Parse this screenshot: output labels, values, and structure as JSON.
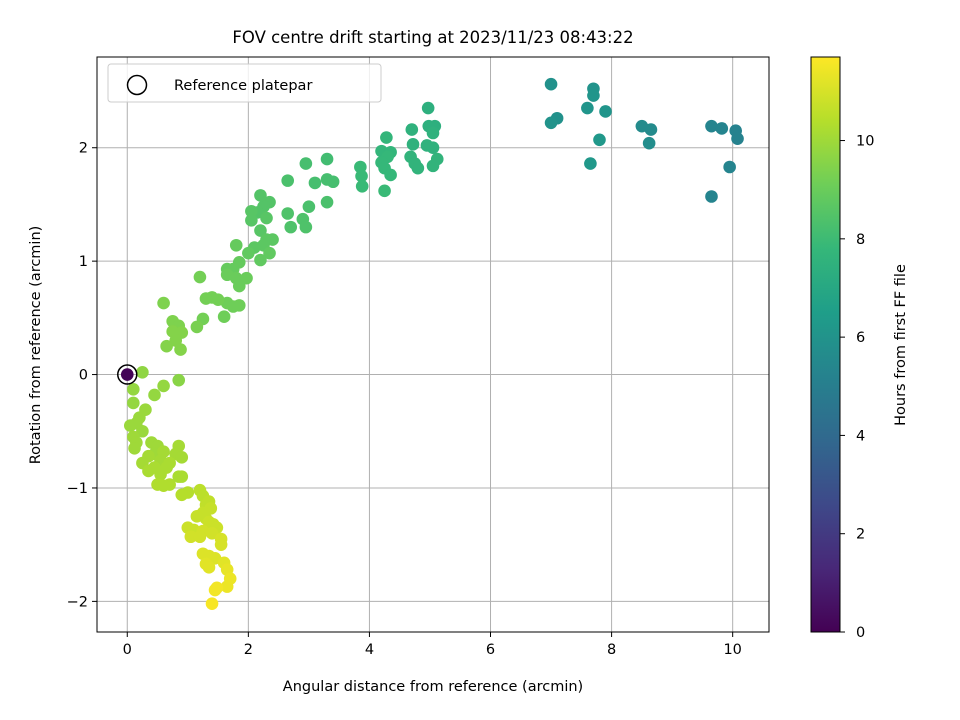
{
  "chart_data": {
    "type": "scatter",
    "title": "FOV centre drift starting at 2023/11/23 08:43:22",
    "xlabel": "Angular distance from reference (arcmin)",
    "ylabel": "Rotation from reference (arcmin)",
    "xlim": [
      -0.5,
      10.6
    ],
    "ylim": [
      -2.27,
      2.8
    ],
    "xticks": [
      0,
      2,
      4,
      6,
      8,
      10
    ],
    "xtick_labels": [
      "0",
      "2",
      "4",
      "6",
      "8",
      "10"
    ],
    "yticks": [
      -2,
      -1,
      0,
      1,
      2
    ],
    "ytick_labels": [
      "−2",
      "−1",
      "0",
      "1",
      "2"
    ],
    "grid": true,
    "legend": {
      "placement": "upper-left",
      "entries": [
        "Reference platepar"
      ]
    },
    "colorbar": {
      "label": "Hours from first FF file",
      "range": [
        0,
        11.7
      ],
      "ticks": [
        0,
        2,
        4,
        6,
        8,
        10
      ],
      "tick_labels": [
        "0",
        "2",
        "4",
        "6",
        "8",
        "10"
      ],
      "colormap": "viridis"
    },
    "reference_point": {
      "x": 0,
      "y": 0,
      "c": 0.1
    },
    "points": [
      [
        7.0,
        2.56,
        5.9
      ],
      [
        7.1,
        2.26,
        5.9
      ],
      [
        7.0,
        2.22,
        6.0
      ],
      [
        7.7,
        2.52,
        6.0
      ],
      [
        7.7,
        2.46,
        6.1
      ],
      [
        7.6,
        2.35,
        6.1
      ],
      [
        7.9,
        2.32,
        6.1
      ],
      [
        7.8,
        2.07,
        6.2
      ],
      [
        7.65,
        1.86,
        6.2
      ],
      [
        8.5,
        2.19,
        5.6
      ],
      [
        8.65,
        2.16,
        5.6
      ],
      [
        8.62,
        2.04,
        5.7
      ],
      [
        9.65,
        2.19,
        5.3
      ],
      [
        9.82,
        2.17,
        5.3
      ],
      [
        10.05,
        2.15,
        5.2
      ],
      [
        10.08,
        2.08,
        5.2
      ],
      [
        9.95,
        1.83,
        5.3
      ],
      [
        9.65,
        1.57,
        5.3
      ],
      [
        4.97,
        2.35,
        7.4
      ],
      [
        4.98,
        2.19,
        7.4
      ],
      [
        5.08,
        2.19,
        7.4
      ],
      [
        5.05,
        2.13,
        7.5
      ],
      [
        4.7,
        2.16,
        7.5
      ],
      [
        4.95,
        2.02,
        7.5
      ],
      [
        5.05,
        2.0,
        7.5
      ],
      [
        4.72,
        2.03,
        7.5
      ],
      [
        4.68,
        1.92,
        7.6
      ],
      [
        4.75,
        1.86,
        7.6
      ],
      [
        5.12,
        1.9,
        7.6
      ],
      [
        5.05,
        1.84,
        7.6
      ],
      [
        4.8,
        1.82,
        7.6
      ],
      [
        4.28,
        2.09,
        7.7
      ],
      [
        4.2,
        1.97,
        7.7
      ],
      [
        4.35,
        1.96,
        7.7
      ],
      [
        4.3,
        1.92,
        7.8
      ],
      [
        4.2,
        1.87,
        7.8
      ],
      [
        4.25,
        1.82,
        7.8
      ],
      [
        4.35,
        1.76,
        7.8
      ],
      [
        3.85,
        1.83,
        7.9
      ],
      [
        3.87,
        1.75,
        7.9
      ],
      [
        3.88,
        1.66,
        7.9
      ],
      [
        4.25,
        1.62,
        7.9
      ],
      [
        3.3,
        1.9,
        8.1
      ],
      [
        2.95,
        1.86,
        8.2
      ],
      [
        3.1,
        1.69,
        8.2
      ],
      [
        3.3,
        1.72,
        8.2
      ],
      [
        3.4,
        1.7,
        8.2
      ],
      [
        3.0,
        1.48,
        8.3
      ],
      [
        3.3,
        1.52,
        8.3
      ],
      [
        2.65,
        1.71,
        8.3
      ],
      [
        2.65,
        1.42,
        8.4
      ],
      [
        2.9,
        1.37,
        8.4
      ],
      [
        2.7,
        1.3,
        8.4
      ],
      [
        2.95,
        1.3,
        8.4
      ],
      [
        2.35,
        1.52,
        8.5
      ],
      [
        2.25,
        1.48,
        8.5
      ],
      [
        2.15,
        1.43,
        8.5
      ],
      [
        2.05,
        1.44,
        8.6
      ],
      [
        2.2,
        1.58,
        8.5
      ],
      [
        2.3,
        1.38,
        8.6
      ],
      [
        2.05,
        1.36,
        8.6
      ],
      [
        2.2,
        1.27,
        8.6
      ],
      [
        2.3,
        1.19,
        8.7
      ],
      [
        2.4,
        1.19,
        8.7
      ],
      [
        2.25,
        1.14,
        8.7
      ],
      [
        2.1,
        1.12,
        8.7
      ],
      [
        2.35,
        1.07,
        8.8
      ],
      [
        2.2,
        1.01,
        8.8
      ],
      [
        2.0,
        1.07,
        8.8
      ],
      [
        1.8,
        1.14,
        8.9
      ],
      [
        1.85,
        0.99,
        8.9
      ],
      [
        1.65,
        0.93,
        8.9
      ],
      [
        1.75,
        0.93,
        8.9
      ],
      [
        1.65,
        0.88,
        9.0
      ],
      [
        1.8,
        0.85,
        9.0
      ],
      [
        1.97,
        0.85,
        9.0
      ],
      [
        1.85,
        0.78,
        9.0
      ],
      [
        1.65,
        0.63,
        9.1
      ],
      [
        1.75,
        0.6,
        9.1
      ],
      [
        1.85,
        0.61,
        9.1
      ],
      [
        1.6,
        0.51,
        9.1
      ],
      [
        1.5,
        0.66,
        9.2
      ],
      [
        1.4,
        0.68,
        9.2
      ],
      [
        1.3,
        0.67,
        9.2
      ],
      [
        1.25,
        0.49,
        9.2
      ],
      [
        1.15,
        0.42,
        9.3
      ],
      [
        1.2,
        0.86,
        9.2
      ],
      [
        0.6,
        0.63,
        9.4
      ],
      [
        0.75,
        0.47,
        9.4
      ],
      [
        0.85,
        0.43,
        9.4
      ],
      [
        0.9,
        0.37,
        9.5
      ],
      [
        0.75,
        0.38,
        9.5
      ],
      [
        0.8,
        0.3,
        9.5
      ],
      [
        0.65,
        0.25,
        9.5
      ],
      [
        0.88,
        0.22,
        9.5
      ],
      [
        0.85,
        -0.05,
        9.6
      ],
      [
        0.25,
        0.02,
        9.7
      ],
      [
        0.1,
        -0.13,
        9.8
      ],
      [
        0.6,
        -0.1,
        9.8
      ],
      [
        0.45,
        -0.18,
        9.8
      ],
      [
        0.1,
        -0.25,
        9.8
      ],
      [
        0.3,
        -0.31,
        9.9
      ],
      [
        0.2,
        -0.38,
        9.9
      ],
      [
        0.15,
        -0.43,
        9.9
      ],
      [
        0.05,
        -0.45,
        9.9
      ],
      [
        0.25,
        -0.5,
        9.9
      ],
      [
        0.1,
        -0.55,
        10.0
      ],
      [
        0.15,
        -0.6,
        10.0
      ],
      [
        0.12,
        -0.65,
        10.0
      ],
      [
        0.4,
        -0.6,
        10.0
      ],
      [
        0.5,
        -0.63,
        10.0
      ],
      [
        0.45,
        -0.7,
        10.0
      ],
      [
        0.6,
        -0.68,
        10.1
      ],
      [
        0.35,
        -0.72,
        10.1
      ],
      [
        0.25,
        -0.78,
        10.1
      ],
      [
        0.55,
        -0.76,
        10.1
      ],
      [
        0.85,
        -0.63,
        10.1
      ],
      [
        0.8,
        -0.7,
        10.1
      ],
      [
        0.9,
        -0.73,
        10.1
      ],
      [
        0.7,
        -0.78,
        10.2
      ],
      [
        0.65,
        -0.82,
        10.2
      ],
      [
        0.45,
        -0.82,
        10.2
      ],
      [
        0.35,
        -0.85,
        10.2
      ],
      [
        0.55,
        -0.88,
        10.2
      ],
      [
        0.9,
        -0.9,
        10.2
      ],
      [
        0.85,
        -0.9,
        10.2
      ],
      [
        0.5,
        -0.97,
        10.3
      ],
      [
        0.7,
        -0.97,
        10.3
      ],
      [
        0.6,
        -0.98,
        10.3
      ],
      [
        1.0,
        -1.04,
        10.4
      ],
      [
        0.9,
        -1.06,
        10.4
      ],
      [
        1.2,
        -1.02,
        10.5
      ],
      [
        1.25,
        -1.07,
        10.5
      ],
      [
        1.35,
        -1.12,
        10.6
      ],
      [
        1.3,
        -1.15,
        10.6
      ],
      [
        1.38,
        -1.18,
        10.7
      ],
      [
        1.25,
        -1.22,
        10.7
      ],
      [
        1.15,
        -1.25,
        10.7
      ],
      [
        1.3,
        -1.27,
        10.7
      ],
      [
        1.35,
        -1.3,
        10.8
      ],
      [
        1.42,
        -1.32,
        10.8
      ],
      [
        1.48,
        -1.35,
        10.8
      ],
      [
        1.0,
        -1.35,
        10.8
      ],
      [
        1.1,
        -1.37,
        10.8
      ],
      [
        1.25,
        -1.38,
        10.9
      ],
      [
        1.4,
        -1.4,
        10.9
      ],
      [
        1.05,
        -1.43,
        10.9
      ],
      [
        1.2,
        -1.43,
        10.9
      ],
      [
        1.55,
        -1.45,
        11.0
      ],
      [
        1.55,
        -1.5,
        11.0
      ],
      [
        1.25,
        -1.58,
        11.1
      ],
      [
        1.35,
        -1.6,
        11.1
      ],
      [
        1.45,
        -1.62,
        11.1
      ],
      [
        1.3,
        -1.67,
        11.2
      ],
      [
        1.35,
        -1.7,
        11.2
      ],
      [
        1.6,
        -1.66,
        11.2
      ],
      [
        1.65,
        -1.72,
        11.3
      ],
      [
        1.7,
        -1.8,
        11.4
      ],
      [
        1.65,
        -1.87,
        11.4
      ],
      [
        1.48,
        -1.88,
        11.5
      ],
      [
        1.45,
        -1.9,
        11.5
      ],
      [
        1.4,
        -2.02,
        11.6
      ]
    ]
  }
}
